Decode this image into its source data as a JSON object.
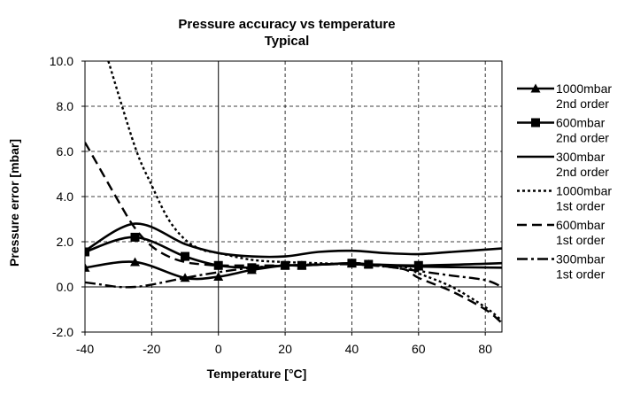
{
  "chart_data": {
    "type": "line",
    "title": "Pressure accuracy vs temperature",
    "subtitle": "Typical",
    "xlabel": "Temperature [°C]",
    "ylabel": "Pressure error [mbar]",
    "xlim": [
      -40,
      85
    ],
    "ylim": [
      -2,
      10
    ],
    "xticks": [
      -40,
      -20,
      0,
      20,
      40,
      60,
      80
    ],
    "xtick_labels": [
      "-40",
      "-20",
      "0",
      "20",
      "40",
      "60",
      "80"
    ],
    "yticks": [
      -2,
      0,
      2,
      4,
      6,
      8,
      10
    ],
    "ytick_labels": [
      "-2.0",
      "0.0",
      "2.0",
      "4.0",
      "6.0",
      "8.0",
      "10.0"
    ],
    "grid": "dashed",
    "legend_position": "right",
    "series": [
      {
        "name": "1000mbar 2nd order",
        "legend_lines": [
          "1000mbar",
          "2nd order"
        ],
        "style": "solid",
        "marker": "triangle",
        "x": [
          -40,
          -25,
          -10,
          0,
          10,
          20,
          25,
          40,
          45,
          60,
          85
        ],
        "y": [
          0.85,
          1.1,
          0.4,
          0.45,
          0.75,
          0.95,
          0.95,
          1.05,
          1.0,
          0.9,
          0.85
        ],
        "marker_x": [
          -40,
          -25,
          -10,
          0,
          10,
          20,
          25,
          40,
          45,
          60
        ],
        "marker_y": [
          0.85,
          1.1,
          0.4,
          0.45,
          0.75,
          0.95,
          0.95,
          1.05,
          1.0,
          0.9
        ]
      },
      {
        "name": "600mbar 2nd order",
        "legend_lines": [
          "600mbar",
          "2nd order"
        ],
        "style": "solid",
        "marker": "square",
        "x": [
          -40,
          -25,
          -10,
          0,
          10,
          20,
          25,
          40,
          45,
          60,
          85
        ],
        "y": [
          1.55,
          2.2,
          1.35,
          0.95,
          0.85,
          0.95,
          0.95,
          1.05,
          1.0,
          0.95,
          1.05
        ],
        "marker_x": [
          -40,
          -25,
          -10,
          0,
          10,
          20,
          25,
          40,
          45,
          60
        ],
        "marker_y": [
          1.55,
          2.2,
          1.35,
          0.95,
          0.85,
          0.95,
          0.95,
          1.05,
          1.0,
          0.95
        ]
      },
      {
        "name": "300mbar 2nd order",
        "legend_lines": [
          "300mbar",
          "2nd order"
        ],
        "style": "solid",
        "marker": "none",
        "x": [
          -40,
          -25,
          -10,
          0,
          10,
          20,
          30,
          40,
          50,
          60,
          70,
          85
        ],
        "y": [
          1.6,
          2.8,
          1.9,
          1.5,
          1.35,
          1.35,
          1.55,
          1.6,
          1.5,
          1.45,
          1.55,
          1.7
        ]
      },
      {
        "name": "1000mbar 1st order",
        "legend_lines": [
          "1000mbar",
          "1st order"
        ],
        "style": "dotted",
        "marker": "none",
        "x": [
          -33,
          -25,
          -20,
          -15,
          -10,
          -5,
          0,
          10,
          20,
          40,
          55,
          60,
          70,
          80,
          85
        ],
        "y": [
          10.0,
          6.2,
          4.5,
          3.0,
          2.1,
          1.65,
          1.5,
          1.2,
          1.1,
          1.0,
          0.9,
          0.6,
          0.0,
          -0.9,
          -1.5
        ]
      },
      {
        "name": "600mbar 1st order",
        "legend_lines": [
          "600mbar",
          "1st order"
        ],
        "style": "dashed",
        "marker": "none",
        "x": [
          -40,
          -30,
          -25,
          -20,
          -15,
          -10,
          -5,
          0,
          10,
          20,
          40,
          55,
          60,
          70,
          80,
          85
        ],
        "y": [
          6.4,
          3.8,
          2.6,
          1.8,
          1.35,
          1.1,
          1.0,
          0.95,
          0.95,
          0.95,
          1.0,
          0.8,
          0.4,
          -0.2,
          -1.0,
          -1.6
        ]
      },
      {
        "name": "300mbar 1st order",
        "legend_lines": [
          "300mbar",
          "1st order"
        ],
        "style": "dashdot",
        "marker": "none",
        "x": [
          -40,
          -35,
          -30,
          -25,
          -20,
          -10,
          0,
          10,
          20,
          30,
          40,
          50,
          60,
          70,
          80,
          85
        ],
        "y": [
          0.2,
          0.1,
          0.0,
          0.0,
          0.1,
          0.4,
          0.65,
          0.85,
          0.95,
          1.0,
          1.0,
          0.9,
          0.7,
          0.5,
          0.3,
          0.0
        ]
      }
    ]
  }
}
